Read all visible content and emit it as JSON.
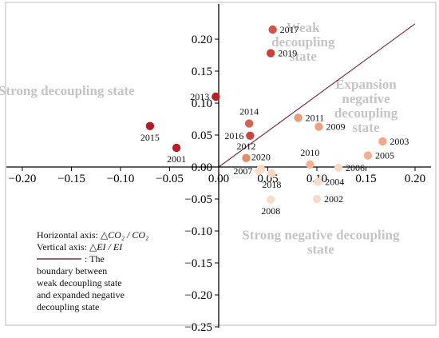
{
  "chart_data": {
    "type": "scatter",
    "x_range": [
      -0.2,
      0.2
    ],
    "y_range": [
      -0.25,
      0.25
    ],
    "x_ticks": [
      {
        "value": -0.2,
        "label": "−0.20"
      },
      {
        "value": -0.15,
        "label": "−0.15"
      },
      {
        "value": -0.1,
        "label": "−0.10"
      },
      {
        "value": -0.05,
        "label": "−0.05"
      },
      {
        "value": 0.0,
        "label": "0.00"
      },
      {
        "value": 0.05,
        "label": "0.05"
      },
      {
        "value": 0.1,
        "label": "0.10"
      },
      {
        "value": 0.15,
        "label": "0.15"
      },
      {
        "value": 0.2,
        "label": "0.20"
      }
    ],
    "y_ticks": [
      {
        "value": 0.2,
        "label": "0.20"
      },
      {
        "value": 0.15,
        "label": "0.15"
      },
      {
        "value": 0.1,
        "label": "0.10"
      },
      {
        "value": 0.05,
        "label": "0.05"
      },
      {
        "value": 0.0,
        "label": "0.00"
      },
      {
        "value": -0.05,
        "label": "−0.05"
      },
      {
        "value": -0.1,
        "label": "−0.10"
      },
      {
        "value": -0.15,
        "label": "−0.15"
      },
      {
        "value": -0.2,
        "label": "−0.20"
      },
      {
        "value": -0.25,
        "label": "−0.25"
      }
    ],
    "boundary_line": {
      "x": [
        0.0,
        0.2
      ],
      "y": [
        0.0,
        0.224
      ],
      "color": "#7b2f3f"
    },
    "grid": false,
    "points": [
      {
        "year": "2017",
        "x": 0.055,
        "y": 0.215,
        "color": "#d1544a",
        "label_pos": "right"
      },
      {
        "year": "2019",
        "x": 0.053,
        "y": 0.178,
        "color": "#c9403c",
        "label_pos": "right"
      },
      {
        "year": "2013",
        "x": -0.003,
        "y": 0.11,
        "color": "#b62026",
        "label_pos": "left"
      },
      {
        "year": "2015",
        "x": -0.07,
        "y": 0.064,
        "color": "#b01c24",
        "label_pos": "below"
      },
      {
        "year": "2001",
        "x": -0.043,
        "y": 0.03,
        "color": "#b52027",
        "label_pos": "below"
      },
      {
        "year": "2014",
        "x": 0.031,
        "y": 0.068,
        "color": "#d36550",
        "label_pos": "above"
      },
      {
        "year": "2016",
        "x": 0.032,
        "y": 0.049,
        "color": "#c9463f",
        "label_pos": "left"
      },
      {
        "year": "2012",
        "x": 0.028,
        "y": 0.014,
        "color": "#e48d6c",
        "label_pos": "above"
      },
      {
        "year": "2011",
        "x": 0.081,
        "y": 0.077,
        "color": "#eb9a78",
        "label_pos": "right"
      },
      {
        "year": "2009",
        "x": 0.102,
        "y": 0.063,
        "color": "#eba282",
        "label_pos": "right"
      },
      {
        "year": "2003",
        "x": 0.167,
        "y": 0.04,
        "color": "#f0a888",
        "label_pos": "right"
      },
      {
        "year": "2005",
        "x": 0.152,
        "y": 0.018,
        "color": "#f2ae8e",
        "label_pos": "right"
      },
      {
        "year": "2010",
        "x": 0.093,
        "y": 0.004,
        "color": "#f3b394",
        "label_pos": "above"
      },
      {
        "year": "2020",
        "x": 0.043,
        "y": -0.003,
        "color": "#f6d5bc",
        "label_pos": "above"
      },
      {
        "year": "2007",
        "x": 0.041,
        "y": -0.006,
        "color": "#f7dcc6",
        "label_pos": "left"
      },
      {
        "year": "2018",
        "x": 0.054,
        "y": -0.01,
        "color": "#f7d6be",
        "label_pos": "below"
      },
      {
        "year": "2006",
        "x": 0.122,
        "y": -0.001,
        "color": "#f8dac2",
        "label_pos": "right"
      },
      {
        "year": "2004",
        "x": 0.101,
        "y": -0.023,
        "color": "#f8dcc6",
        "label_pos": "right"
      },
      {
        "year": "2008",
        "x": 0.053,
        "y": -0.051,
        "color": "#f8dec8",
        "label_pos": "below"
      },
      {
        "year": "2002",
        "x": 0.1,
        "y": -0.05,
        "color": "#f8dcc6",
        "label_pos": "right"
      }
    ],
    "region_labels": [
      {
        "lines": [
          "Weak",
          "decoupling",
          "state"
        ],
        "x": 0.086,
        "y": 0.196
      },
      {
        "lines": [
          "Strong decoupling state"
        ],
        "x": -0.155,
        "y": 0.12
      },
      {
        "lines": [
          "Expansion",
          "negative",
          "decoupling",
          "state"
        ],
        "x": 0.15,
        "y": 0.096
      },
      {
        "lines": [
          "Strong negative decoupling",
          "state"
        ],
        "x": 0.104,
        "y": -0.117
      }
    ],
    "legend": {
      "horizontal_axis_prefix": "Horizontal axis:",
      "horizontal_axis_formula": "△CO₂ / CO₂",
      "vertical_axis_prefix": "Vertical axis:",
      "vertical_axis_formula": "△EI / EI",
      "line_lines": [
        ": The",
        "boundary between",
        "weak decoupling state",
        "and expanded negative",
        "decoupling state"
      ]
    }
  }
}
